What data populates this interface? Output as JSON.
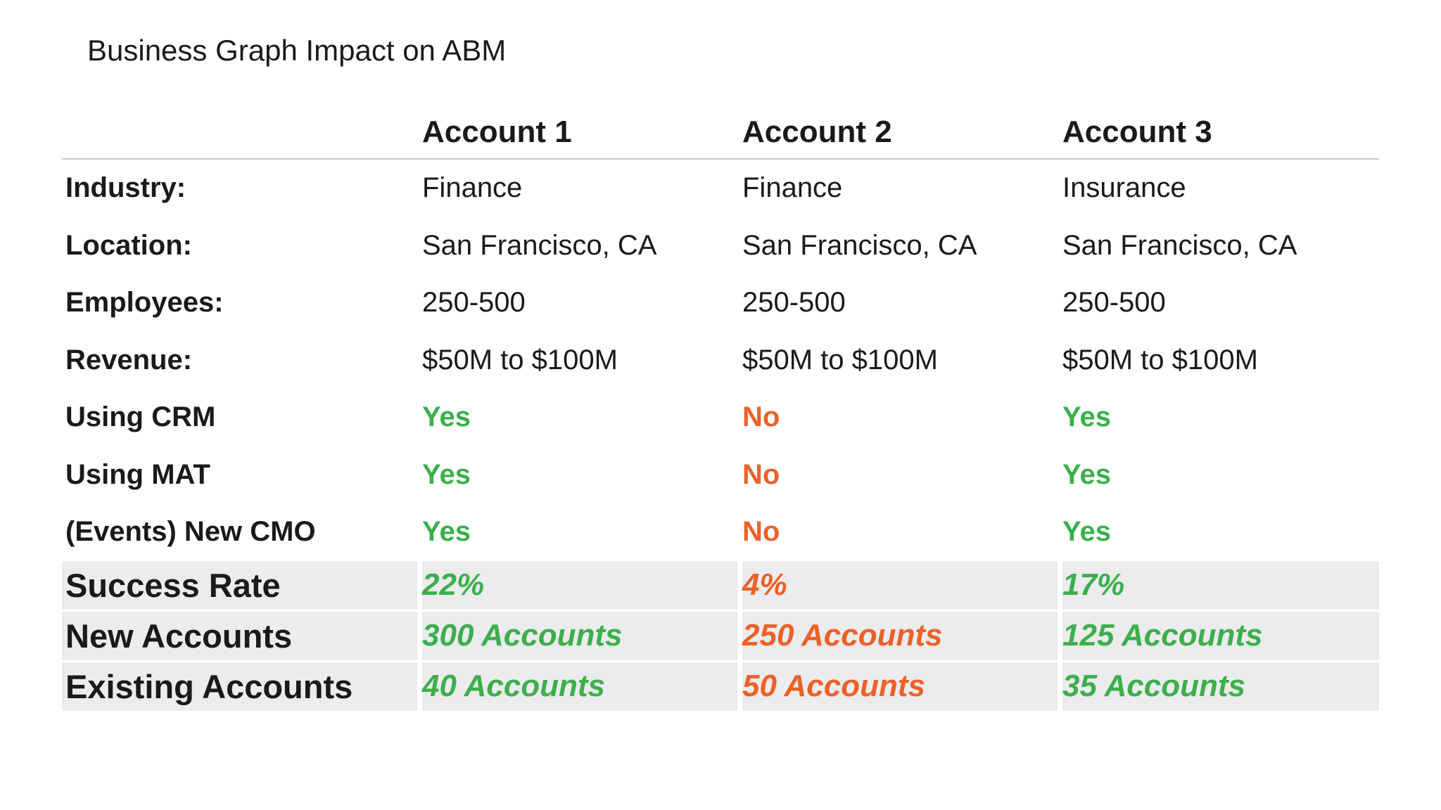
{
  "title": "Business Graph Impact on ABM",
  "colors": {
    "green": "#3CAF4C",
    "orange": "#EC6127",
    "shade": "#ECEBED",
    "hairline": "#C9CACB"
  },
  "table": {
    "columns": [
      "Account 1",
      "Account 2",
      "Account 3"
    ],
    "rows": [
      {
        "label": "Industry:",
        "values": [
          {
            "text": "Finance",
            "tone": "default"
          },
          {
            "text": "Finance",
            "tone": "default"
          },
          {
            "text": "Insurance",
            "tone": "default"
          }
        ]
      },
      {
        "label": "Location:",
        "values": [
          {
            "text": "San Francisco, CA",
            "tone": "default"
          },
          {
            "text": "San Francisco, CA",
            "tone": "default"
          },
          {
            "text": "San Francisco, CA",
            "tone": "default"
          }
        ]
      },
      {
        "label": "Employees:",
        "values": [
          {
            "text": "250-500",
            "tone": "default"
          },
          {
            "text": "250-500",
            "tone": "default"
          },
          {
            "text": "250-500",
            "tone": "default"
          }
        ]
      },
      {
        "label": "Revenue:",
        "values": [
          {
            "text": "$50M to $100M",
            "tone": "default"
          },
          {
            "text": "$50M to $100M",
            "tone": "default"
          },
          {
            "text": "$50M to $100M",
            "tone": "default"
          }
        ]
      },
      {
        "label": "Using CRM",
        "values": [
          {
            "text": "Yes",
            "tone": "green"
          },
          {
            "text": "No",
            "tone": "orange"
          },
          {
            "text": "Yes",
            "tone": "green"
          }
        ]
      },
      {
        "label": "Using MAT",
        "values": [
          {
            "text": "Yes",
            "tone": "green"
          },
          {
            "text": "No",
            "tone": "orange"
          },
          {
            "text": "Yes",
            "tone": "green"
          }
        ]
      },
      {
        "label": "(Events) New CMO",
        "values": [
          {
            "text": "Yes",
            "tone": "green"
          },
          {
            "text": "No",
            "tone": "orange"
          },
          {
            "text": "Yes",
            "tone": "green"
          }
        ]
      }
    ],
    "summary_rows": [
      {
        "label": "Success Rate",
        "values": [
          {
            "text": "22%",
            "tone": "green"
          },
          {
            "text": "4%",
            "tone": "orange"
          },
          {
            "text": "17%",
            "tone": "green"
          }
        ]
      },
      {
        "label": "New Accounts",
        "values": [
          {
            "text": "300 Accounts",
            "tone": "green"
          },
          {
            "text": "250 Accounts",
            "tone": "orange"
          },
          {
            "text": "125 Accounts",
            "tone": "green"
          }
        ]
      },
      {
        "label": "Existing Accounts",
        "values": [
          {
            "text": "40 Accounts",
            "tone": "green"
          },
          {
            "text": "50 Accounts",
            "tone": "orange"
          },
          {
            "text": "35 Accounts",
            "tone": "green"
          }
        ]
      }
    ]
  }
}
